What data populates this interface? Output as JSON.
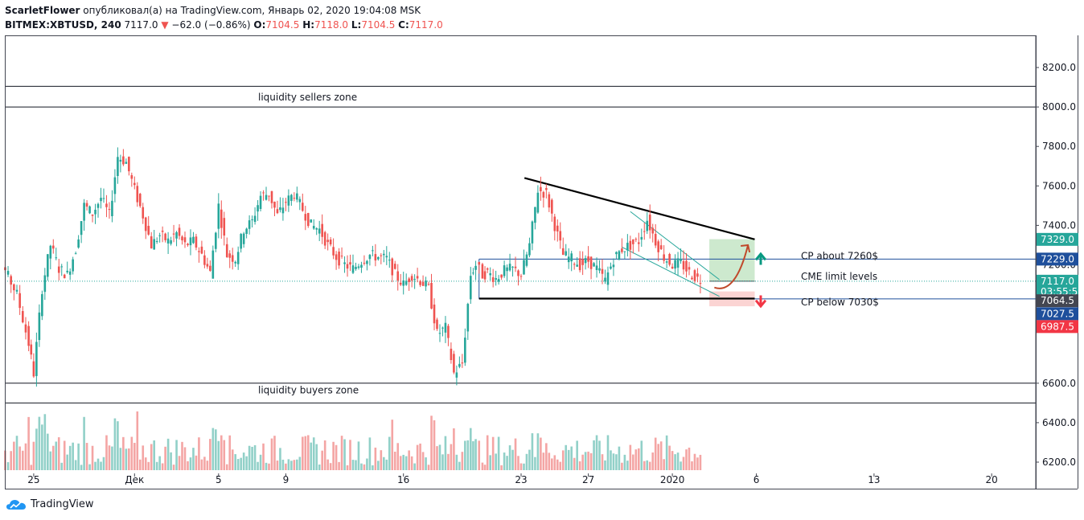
{
  "header": {
    "author": "ScarletFlower",
    "published_text": "опубликовал(а) на TradingView.com, Январь 02, 2020 19:04:08 MSK",
    "symbol": "BITMEX:XBTUSD, 240",
    "last": "7117.0",
    "change": "−62.0 (−0.86%)",
    "o_label": "O:",
    "o": "7104.5",
    "h_label": "H:",
    "h": "7118.0",
    "l_label": "L:",
    "l": "7104.5",
    "c_label": "C:",
    "c": "7117.0"
  },
  "footer": {
    "brand": "TradingView"
  },
  "chart_data": {
    "type": "candlestick",
    "ylim": [
      6170,
      8330
    ],
    "y_ticks": [
      {
        "value": 8200,
        "label": "8200.0"
      },
      {
        "value": 8000,
        "label": "8000.0"
      },
      {
        "value": 7800,
        "label": "7800.0"
      },
      {
        "value": 7600,
        "label": "7600.0"
      },
      {
        "value": 7400,
        "label": "7400.0"
      },
      {
        "value": 7200,
        "label": "7200.0"
      },
      {
        "value": 6600,
        "label": "6600.0"
      },
      {
        "value": 6400,
        "label": "6400.0"
      },
      {
        "value": 6200,
        "label": "6200.0"
      }
    ],
    "x_ticks": [
      {
        "day": -7,
        "label": "25"
      },
      {
        "day": -1,
        "label": "Дек"
      },
      {
        "day": 4,
        "label": "5"
      },
      {
        "day": 8,
        "label": "9"
      },
      {
        "day": 15,
        "label": "16"
      },
      {
        "day": 22,
        "label": "23"
      },
      {
        "day": 26,
        "label": "27"
      },
      {
        "day": 31,
        "label": "2020"
      },
      {
        "day": 36,
        "label": "6"
      },
      {
        "day": 43,
        "label": "13"
      },
      {
        "day": 50,
        "label": "20"
      }
    ],
    "close_series": [
      {
        "day": -10,
        "close": 7200
      },
      {
        "day": -9.3,
        "close": 7260
      },
      {
        "day": -8.7,
        "close": 7170
      },
      {
        "day": -8,
        "close": 7050
      },
      {
        "day": -7.3,
        "close": 6800
      },
      {
        "day": -7,
        "close": 6650
      },
      {
        "day": -6.5,
        "close": 7080
      },
      {
        "day": -6,
        "close": 7300
      },
      {
        "day": -5.5,
        "close": 7180
      },
      {
        "day": -5,
        "close": 7150
      },
      {
        "day": -4.5,
        "close": 7280
      },
      {
        "day": -4,
        "close": 7500
      },
      {
        "day": -3.5,
        "close": 7460
      },
      {
        "day": -3,
        "close": 7540
      },
      {
        "day": -2.5,
        "close": 7450
      },
      {
        "day": -2,
        "close": 7750
      },
      {
        "day": -1.5,
        "close": 7720
      },
      {
        "day": -1,
        "close": 7580
      },
      {
        "day": -0.5,
        "close": 7450
      },
      {
        "day": 0,
        "close": 7300
      },
      {
        "day": 0.5,
        "close": 7350
      },
      {
        "day": 1,
        "close": 7320
      },
      {
        "day": 1.5,
        "close": 7360
      },
      {
        "day": 2,
        "close": 7300
      },
      {
        "day": 2.5,
        "close": 7320
      },
      {
        "day": 3,
        "close": 7250
      },
      {
        "day": 3.5,
        "close": 7160
      },
      {
        "day": 4,
        "close": 7500
      },
      {
        "day": 4.5,
        "close": 7250
      },
      {
        "day": 5,
        "close": 7230
      },
      {
        "day": 5.5,
        "close": 7380
      },
      {
        "day": 6,
        "close": 7420
      },
      {
        "day": 6.5,
        "close": 7550
      },
      {
        "day": 7,
        "close": 7560
      },
      {
        "day": 7.5,
        "close": 7450
      },
      {
        "day": 8,
        "close": 7520
      },
      {
        "day": 8.5,
        "close": 7560
      },
      {
        "day": 9,
        "close": 7480
      },
      {
        "day": 9.5,
        "close": 7400
      },
      {
        "day": 10,
        "close": 7380
      },
      {
        "day": 10.5,
        "close": 7300
      },
      {
        "day": 11,
        "close": 7240
      },
      {
        "day": 11.5,
        "close": 7200
      },
      {
        "day": 12,
        "close": 7180
      },
      {
        "day": 12.5,
        "close": 7220
      },
      {
        "day": 13,
        "close": 7250
      },
      {
        "day": 13.5,
        "close": 7240
      },
      {
        "day": 14,
        "close": 7230
      },
      {
        "day": 14.5,
        "close": 7150
      },
      {
        "day": 15,
        "close": 7100
      },
      {
        "day": 15.5,
        "close": 7150
      },
      {
        "day": 16,
        "close": 7120
      },
      {
        "day": 16.5,
        "close": 7080
      },
      {
        "day": 17,
        "close": 6850
      },
      {
        "day": 17.5,
        "close": 6880
      },
      {
        "day": 18,
        "close": 6650
      },
      {
        "day": 18.5,
        "close": 6700
      },
      {
        "day": 19,
        "close": 7150
      },
      {
        "day": 19.3,
        "close": 7200
      },
      {
        "day": 19.7,
        "close": 7150
      },
      {
        "day": 20,
        "close": 7160
      },
      {
        "day": 20.5,
        "close": 7130
      },
      {
        "day": 21,
        "close": 7170
      },
      {
        "day": 21.5,
        "close": 7180
      },
      {
        "day": 22,
        "close": 7150
      },
      {
        "day": 22.5,
        "close": 7300
      },
      {
        "day": 23,
        "close": 7580
      },
      {
        "day": 23.5,
        "close": 7560
      },
      {
        "day": 24,
        "close": 7400
      },
      {
        "day": 24.5,
        "close": 7250
      },
      {
        "day": 25,
        "close": 7230
      },
      {
        "day": 25.5,
        "close": 7200
      },
      {
        "day": 26,
        "close": 7220
      },
      {
        "day": 26.5,
        "close": 7180
      },
      {
        "day": 27,
        "close": 7120
      },
      {
        "day": 27.5,
        "close": 7230
      },
      {
        "day": 28,
        "close": 7280
      },
      {
        "day": 28.5,
        "close": 7300
      },
      {
        "day": 29,
        "close": 7320
      },
      {
        "day": 29.5,
        "close": 7430
      },
      {
        "day": 30,
        "close": 7320
      },
      {
        "day": 30.5,
        "close": 7240
      },
      {
        "day": 31,
        "close": 7200
      },
      {
        "day": 31.5,
        "close": 7210
      },
      {
        "day": 32,
        "close": 7160
      },
      {
        "day": 32.5,
        "close": 7130
      },
      {
        "day": 33,
        "close": 7117
      }
    ],
    "lines": {
      "sellers_zone_top": 8105,
      "sellers_zone_bottom": 8000,
      "buyers_zone_top": 6600,
      "buyers_zone_bottom": 6500,
      "cme_upper": 7229,
      "cme_lower": 7027.5,
      "resistance_from": {
        "day": 22.2,
        "price": 7640
      },
      "resistance_to": {
        "day": 35.9,
        "price": 7329
      },
      "support_from": {
        "day": 19.5,
        "price": 7029
      },
      "support_to": {
        "day": 35.9,
        "price": 7029
      }
    },
    "boxes": {
      "target": {
        "day_from": 33.2,
        "day_to": 35.9,
        "price_from": 7115,
        "price_to": 7330
      },
      "stop": {
        "day_from": 33.2,
        "day_to": 35.9,
        "price_from": 6990,
        "price_to": 7065
      }
    },
    "annotations": {
      "sellers_zone": "liquidity sellers zone",
      "buyers_zone": "liquidity buyers zone",
      "cp_about": "CP about 7260$",
      "cme_levels": "CME limit levels",
      "cp_below": "CP below 7030$"
    },
    "price_tags": [
      {
        "value": "7329.0",
        "price": 7329,
        "color": "#26a69a"
      },
      {
        "value": "7229.0",
        "price": 7229,
        "color": "#1e4f9c"
      },
      {
        "value": "7117.0",
        "price": 7117,
        "color": "#26a69a"
      },
      {
        "value": "03:55:52",
        "price": 7064,
        "color": "#26a69a"
      },
      {
        "value": "7064.5",
        "price": 7018,
        "color": "#434651"
      },
      {
        "value": "7027.5",
        "price": 6952,
        "color": "#1e4f9c"
      },
      {
        "value": "6987.5",
        "price": 6887,
        "color": "#f23645"
      }
    ],
    "colors": {
      "up": "#26a69a",
      "down": "#ef5350",
      "vol_up": "#91d0c8",
      "vol_down": "#f4a5a4"
    }
  }
}
